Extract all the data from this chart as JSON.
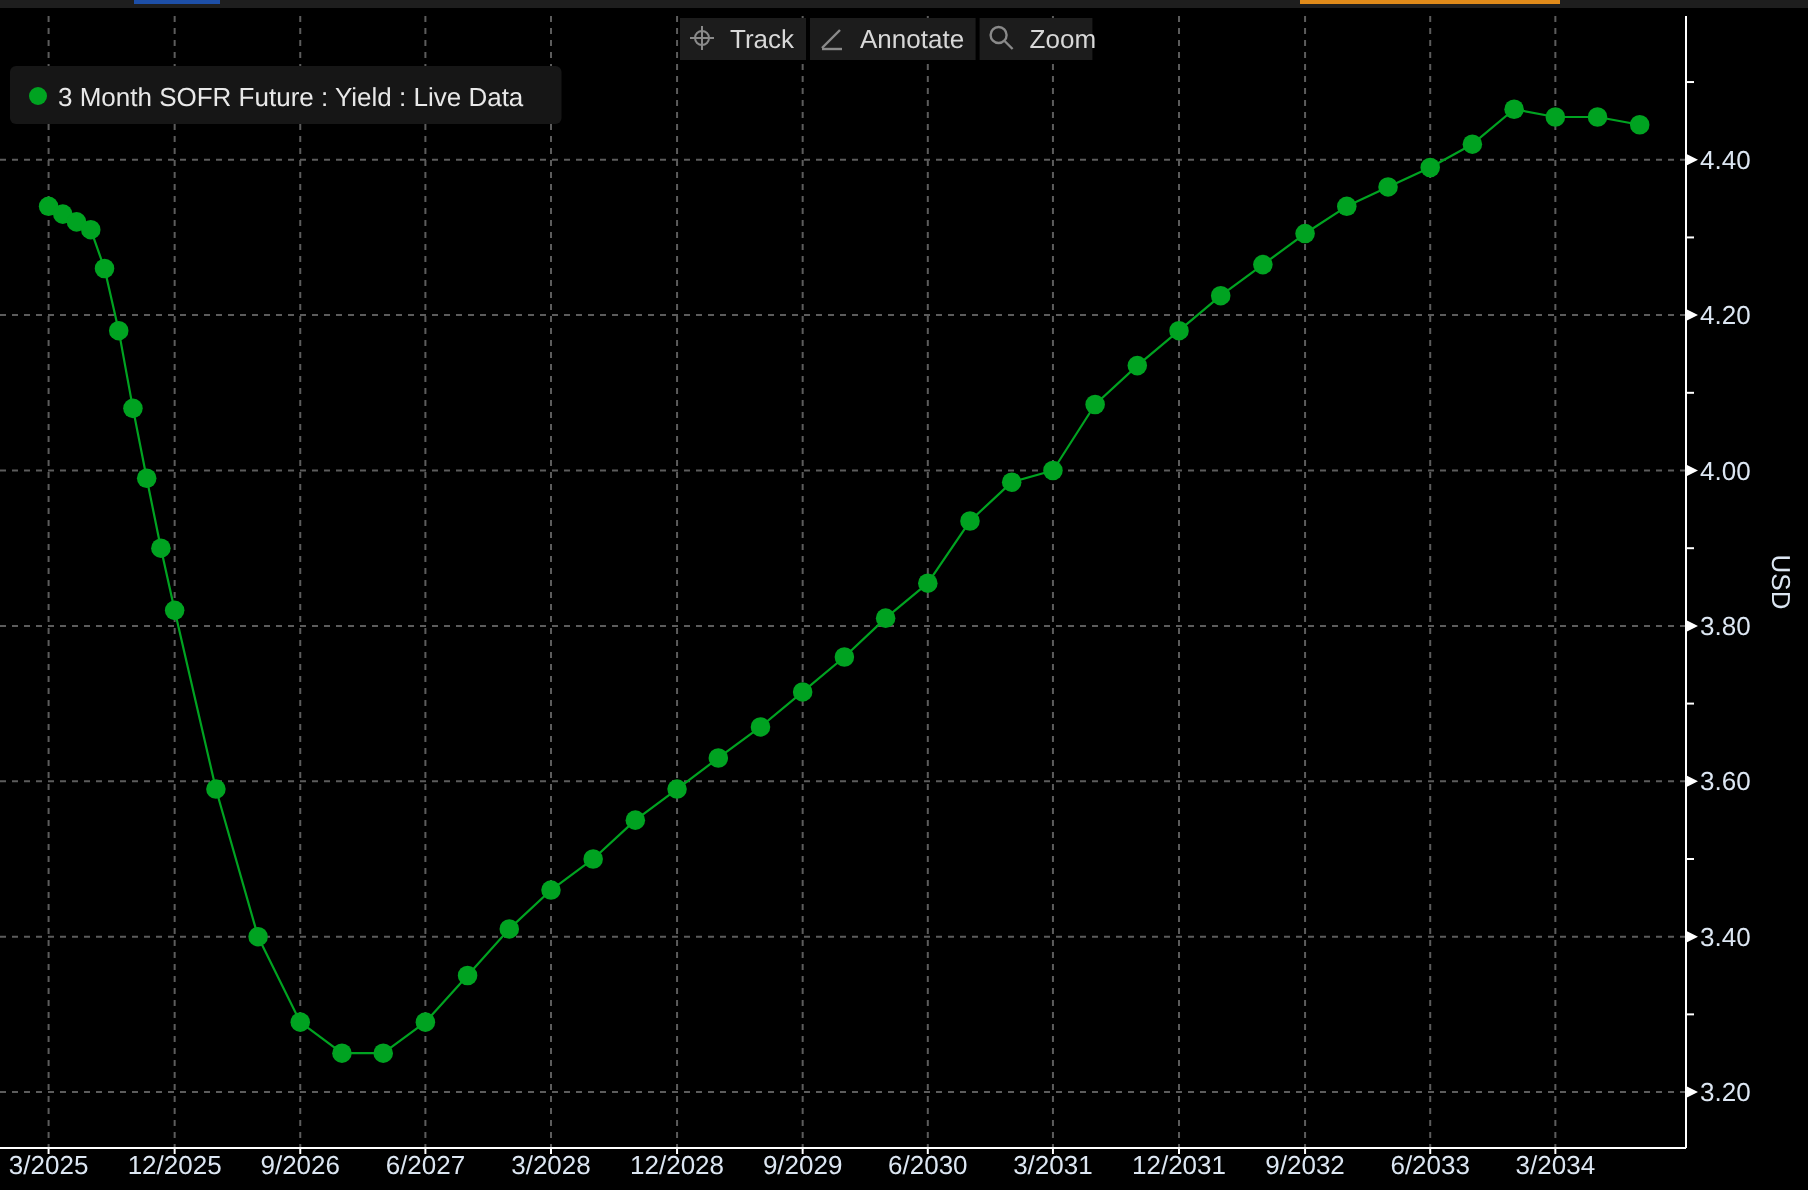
{
  "chart_data": {
    "type": "line",
    "ylabel": "USD",
    "annotations": [
      "Track",
      "Annotate",
      "Zoom"
    ],
    "x": [
      "2025-03",
      "2025-04",
      "2025-05",
      "2025-06",
      "2025-07",
      "2025-08",
      "2025-09",
      "2025-10",
      "2025-11",
      "2025-12",
      "2026-03",
      "2026-06",
      "2026-09",
      "2026-12",
      "2027-03",
      "2027-06",
      "2027-09",
      "2027-12",
      "2028-03",
      "2028-06",
      "2028-09",
      "2028-12",
      "2029-03",
      "2029-06",
      "2029-09",
      "2029-12",
      "2030-03",
      "2030-06",
      "2030-09",
      "2030-12",
      "2031-03",
      "2031-06",
      "2031-09",
      "2031-12",
      "2032-03",
      "2032-06",
      "2032-09",
      "2032-12",
      "2033-03",
      "2033-06",
      "2033-09",
      "2033-12",
      "2034-03",
      "2034-06",
      "2034-09"
    ],
    "series": [
      {
        "name": "3 Month SOFR Future : Yield : Live Data",
        "color": "#00a321",
        "values": [
          4.34,
          4.33,
          4.32,
          4.31,
          4.26,
          4.18,
          4.08,
          3.99,
          3.9,
          3.82,
          3.59,
          3.4,
          3.29,
          3.25,
          3.25,
          3.29,
          3.35,
          3.41,
          3.46,
          3.5,
          3.55,
          3.59,
          3.63,
          3.67,
          3.715,
          3.76,
          3.81,
          3.855,
          3.935,
          3.985,
          4.0,
          4.085,
          4.135,
          4.18,
          4.225,
          4.265,
          4.305,
          4.34,
          4.365,
          4.39,
          4.42,
          4.465,
          4.455,
          4.455,
          4.445
        ]
      }
    ],
    "xlim": [
      "2024-11-15",
      "2034-12-11"
    ],
    "xticks": [
      {
        "value": "2025-03",
        "label": "3/2025"
      },
      {
        "value": "2025-12",
        "label": "12/2025"
      },
      {
        "value": "2026-09",
        "label": "9/2026"
      },
      {
        "value": "2027-06",
        "label": "6/2027"
      },
      {
        "value": "2028-03",
        "label": "3/2028"
      },
      {
        "value": "2028-12",
        "label": "12/2028"
      },
      {
        "value": "2029-09",
        "label": "9/2029"
      },
      {
        "value": "2030-06",
        "label": "6/2030"
      },
      {
        "value": "2031-03",
        "label": "3/2031"
      },
      {
        "value": "2031-12",
        "label": "12/2031"
      },
      {
        "value": "2032-09",
        "label": "9/2032"
      },
      {
        "value": "2033-06",
        "label": "6/2033"
      },
      {
        "value": "2034-03",
        "label": "3/2034"
      }
    ],
    "ylim": [
      3.128,
      4.585
    ],
    "yticks": [
      {
        "value": 3.2,
        "label": "3.20"
      },
      {
        "value": 3.3,
        "label": null
      },
      {
        "value": 3.4,
        "label": "3.40"
      },
      {
        "value": 3.5,
        "label": null
      },
      {
        "value": 3.6,
        "label": "3.60"
      },
      {
        "value": 3.7,
        "label": null
      },
      {
        "value": 3.8,
        "label": "3.80"
      },
      {
        "value": 3.9,
        "label": null
      },
      {
        "value": 4.0,
        "label": "4.00"
      },
      {
        "value": 4.1,
        "label": null
      },
      {
        "value": 4.2,
        "label": "4.20"
      },
      {
        "value": 4.3,
        "label": null
      },
      {
        "value": 4.4,
        "label": "4.40"
      },
      {
        "value": 4.5,
        "label": null
      }
    ],
    "grid": true,
    "legend": "top left",
    "marker": "circle"
  }
}
